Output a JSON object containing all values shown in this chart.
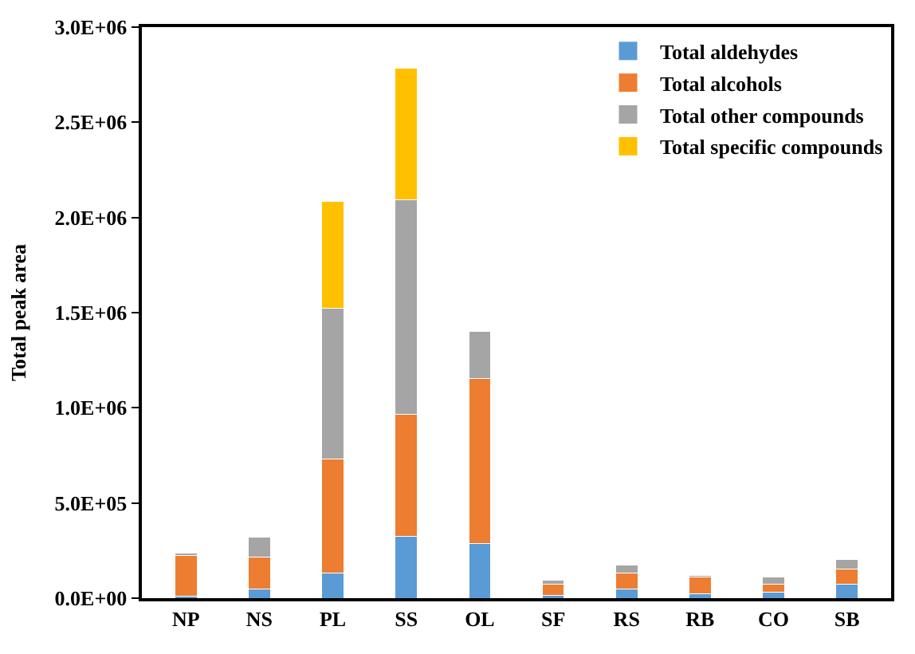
{
  "chart_data": {
    "type": "bar",
    "stacked": true,
    "ylabel": "Total peak area",
    "categories": [
      "NP",
      "NS",
      "PL",
      "SS",
      "OL",
      "SF",
      "RS",
      "RB",
      "CO",
      "SB"
    ],
    "series": [
      {
        "name": "Total aldehydes",
        "color": "#5b9bd5",
        "values": [
          10000,
          50000,
          130000,
          325000,
          285000,
          15000,
          50000,
          25000,
          30000,
          75000
        ]
      },
      {
        "name": "Total alcohols",
        "color": "#ed7d31",
        "values": [
          215000,
          165000,
          600000,
          640000,
          870000,
          60000,
          80000,
          85000,
          45000,
          80000
        ]
      },
      {
        "name": "Total other compounds",
        "color": "#a5a5a5",
        "values": [
          10000,
          105000,
          795000,
          1130000,
          245000,
          20000,
          45000,
          10000,
          35000,
          50000
        ]
      },
      {
        "name": "Total specific compounds",
        "color": "#ffc000",
        "values": [
          null,
          null,
          560000,
          690000,
          null,
          null,
          null,
          null,
          null,
          null
        ]
      }
    ],
    "ylim": [
      0,
      3000000
    ],
    "yticks": [
      {
        "value": 0,
        "label": "0.0E+00"
      },
      {
        "value": 500000,
        "label": "5.0E+05"
      },
      {
        "value": 1000000,
        "label": "1.0E+06"
      },
      {
        "value": 1500000,
        "label": "1.5E+06"
      },
      {
        "value": 2000000,
        "label": "2.0E+06"
      },
      {
        "value": 2500000,
        "label": "2.5E+06"
      },
      {
        "value": 3000000,
        "label": "3.0E+06"
      }
    ],
    "grid": false,
    "legend": "top right"
  }
}
